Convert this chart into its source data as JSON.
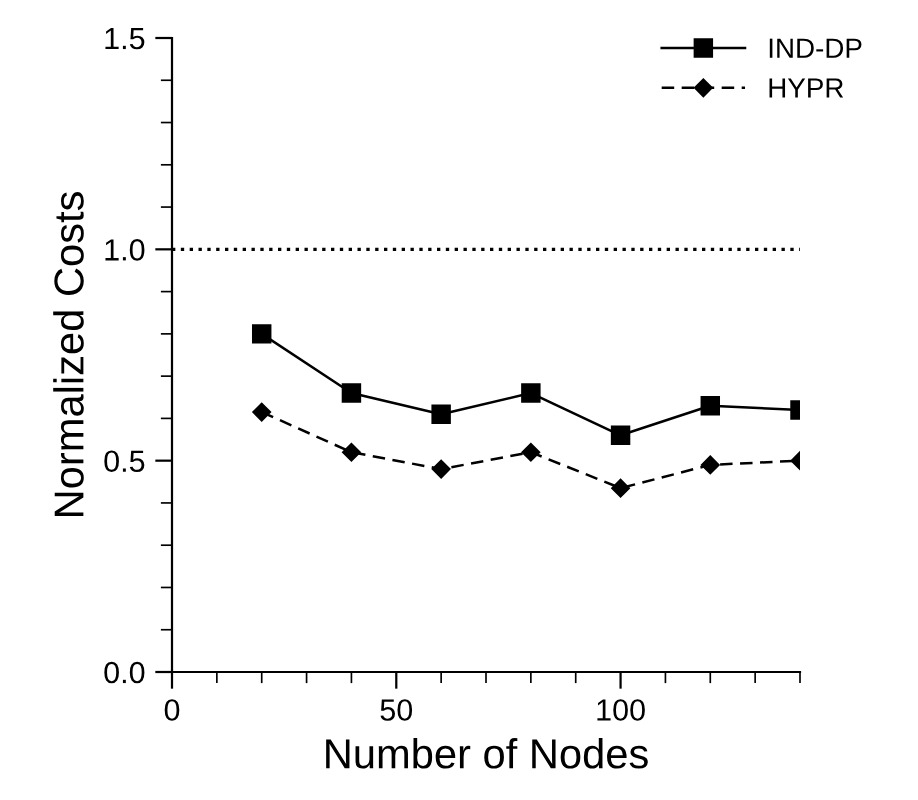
{
  "chart_data": {
    "type": "line",
    "xlabel": "Number of Nodes",
    "ylabel": "Normalized Costs",
    "x": [
      20,
      40,
      60,
      80,
      100,
      120,
      140
    ],
    "series": [
      {
        "name": "IND-DP",
        "color": "#000000",
        "marker": "square",
        "line_style": "solid",
        "values": [
          0.8,
          0.66,
          0.61,
          0.66,
          0.56,
          0.63,
          0.62
        ]
      },
      {
        "name": "HYPR",
        "color": "#000000",
        "marker": "diamond",
        "line_style": "dashed",
        "values": [
          0.615,
          0.52,
          0.48,
          0.52,
          0.435,
          0.49,
          0.5
        ]
      }
    ],
    "xlim": [
      0,
      140
    ],
    "xticks": [
      0,
      50,
      100
    ],
    "ylim": [
      0,
      1.5
    ],
    "yticks": [
      {
        "value": 0,
        "label": "0.0"
      },
      {
        "value": 0.5,
        "label": "0.5"
      },
      {
        "value": 1,
        "label": "1.0"
      },
      {
        "value": 1.5,
        "label": "1.5"
      }
    ],
    "ref_lines": [
      {
        "axis": "y",
        "value": 1.0,
        "color": "#000000",
        "line_style": "dotted"
      }
    ],
    "grid": false,
    "legend": "top right"
  }
}
